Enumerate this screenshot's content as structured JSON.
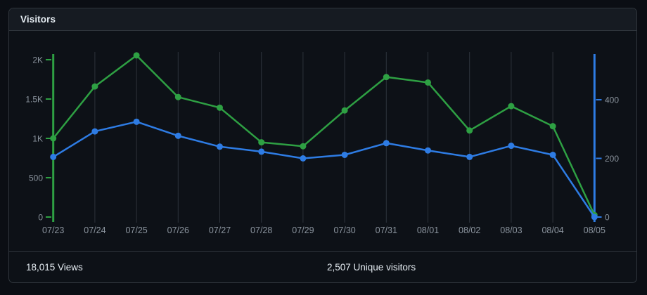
{
  "card": {
    "title": "Visitors",
    "footer": {
      "views": "18,015 Views",
      "unique": "2,507 Unique visitors"
    }
  },
  "colors": {
    "views_green": "#2ea043",
    "unique_blue": "#2e7ce4",
    "grid": "#2d333b",
    "tick_text": "#8b949e",
    "card_bg": "#0d1117",
    "header_bg": "#161b22",
    "border": "#30363d",
    "text_primary": "#e6edf3"
  },
  "chart_data": {
    "type": "line",
    "title": "Visitors",
    "categories": [
      "07/23",
      "07/24",
      "07/25",
      "07/26",
      "07/27",
      "07/28",
      "07/29",
      "07/30",
      "07/31",
      "08/01",
      "08/02",
      "08/03",
      "08/04",
      "08/05"
    ],
    "series": [
      {
        "name": "Views",
        "axis": "left",
        "color": "#2ea043",
        "values": [
          1000,
          1660,
          2055,
          1525,
          1390,
          950,
          900,
          1355,
          1780,
          1710,
          1100,
          1410,
          1155,
          25
        ]
      },
      {
        "name": "Unique visitors",
        "axis": "right",
        "color": "#2e7ce4",
        "values": [
          205,
          292,
          325,
          277,
          240,
          223,
          200,
          212,
          252,
          227,
          205,
          243,
          212,
          0
        ]
      }
    ],
    "left_axis": {
      "tick_values": [
        0,
        500,
        1000,
        1500,
        2000
      ],
      "tick_labels": [
        "0",
        "500",
        "1K",
        "1.5K",
        "2K"
      ],
      "range": [
        0,
        2000
      ],
      "color": "#2ea043"
    },
    "right_axis": {
      "tick_values": [
        0,
        200,
        400
      ],
      "tick_labels": [
        "0",
        "200",
        "400"
      ],
      "range": [
        0,
        400
      ],
      "color": "#2e7ce4"
    },
    "grid": "vertical",
    "legend": "none",
    "totals": {
      "views": 18015,
      "unique_visitors": 2507
    }
  }
}
